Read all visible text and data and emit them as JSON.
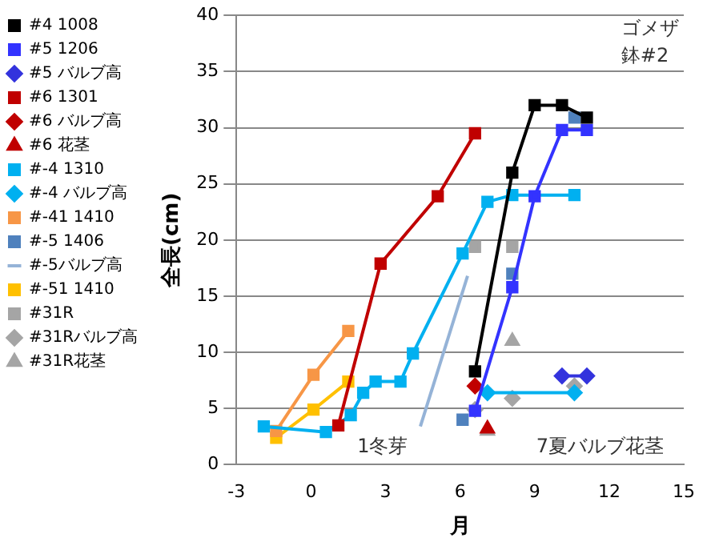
{
  "chart_data": {
    "type": "line",
    "xlabel": "月",
    "ylabel": "全長(cm)",
    "xlim": [
      -3,
      15
    ],
    "xticks": [
      -3,
      0,
      3,
      6,
      9,
      12,
      15
    ],
    "ylim": [
      0,
      40
    ],
    "yticks": [
      0,
      5,
      10,
      15,
      20,
      25,
      30,
      35,
      40
    ],
    "grid": "y",
    "legend": "left",
    "annotations": [
      "ゴメザ",
      "鉢#2",
      "1冬芽",
      "7夏バルブ花茎"
    ],
    "series": [
      {
        "name": "#4 1008",
        "marker": "square",
        "color": "#000000",
        "x": [
          6.6,
          8.1,
          9.0,
          10.1,
          11.1
        ],
        "values": [
          8.3,
          26.0,
          32.0,
          32.0,
          30.9
        ]
      },
      {
        "name": "#5 1206",
        "marker": "square",
        "color": "#3333ff",
        "x": [
          6.6,
          8.1,
          9.0,
          10.1,
          11.1
        ],
        "values": [
          4.8,
          15.8,
          23.9,
          29.8,
          29.8
        ]
      },
      {
        "name": "#5 バルブ高",
        "marker": "diamond",
        "color": "#3333dd",
        "x": [
          10.1,
          11.1
        ],
        "values": [
          7.9,
          7.9
        ]
      },
      {
        "name": "#6 1301",
        "marker": "square",
        "color": "#c00000",
        "x": [
          1.1,
          2.8,
          5.1,
          6.6
        ],
        "values": [
          3.5,
          17.9,
          23.9,
          29.5
        ]
      },
      {
        "name": "#6 バルブ高",
        "type": "scatter",
        "marker": "diamond",
        "color": "#c00000",
        "x": [
          6.6
        ],
        "values": [
          7.0
        ]
      },
      {
        "name": "#6 花茎",
        "type": "scatter",
        "marker": "triangle",
        "color": "#c00000",
        "x": [
          7.1
        ],
        "values": [
          3.2
        ]
      },
      {
        "name": "#-4 1310",
        "marker": "square",
        "color": "#00b0f0",
        "x": [
          -1.9,
          0.6,
          1.6,
          2.1,
          2.6,
          3.6,
          4.1,
          6.1,
          7.1,
          8.1,
          10.6
        ],
        "values": [
          3.4,
          2.9,
          4.4,
          6.4,
          7.4,
          7.4,
          9.9,
          18.8,
          23.4,
          24.0,
          24.0
        ]
      },
      {
        "name": "#-4 バルブ高",
        "marker": "diamond",
        "color": "#00b0f0",
        "x": [
          7.1,
          10.6
        ],
        "values": [
          6.4,
          6.4
        ]
      },
      {
        "name": "#-41 1410",
        "marker": "square",
        "color": "#f79646",
        "x": [
          -1.4,
          0.1,
          1.5
        ],
        "values": [
          3.0,
          8.0,
          11.9
        ]
      },
      {
        "name": "#-5 1406",
        "type": "scatter",
        "marker": "square",
        "color": "#4f81bd",
        "x": [
          6.1,
          8.1,
          10.6
        ],
        "values": [
          4.0,
          17.0,
          30.9
        ]
      },
      {
        "name": "#-5バルブ高",
        "marker": "none",
        "color": "#95b3d7",
        "x": [
          4.4,
          6.3
        ],
        "values": [
          3.4,
          16.8
        ]
      },
      {
        "name": "#-51 1410",
        "marker": "square",
        "color": "#ffc000",
        "x": [
          -1.4,
          0.1,
          1.5
        ],
        "values": [
          2.4,
          4.9,
          7.4
        ]
      },
      {
        "name": "#31R",
        "type": "scatter",
        "marker": "square",
        "color": "#a5a5a5",
        "x": [
          6.6,
          8.1
        ],
        "values": [
          19.4,
          19.4
        ]
      },
      {
        "name": "#31Rバルブ高",
        "type": "scatter",
        "marker": "diamond",
        "color": "#a5a5a5",
        "x": [
          6.6,
          8.1,
          10.6
        ],
        "values": [
          4.9,
          5.9,
          7.0
        ]
      },
      {
        "name": "#31R花茎",
        "type": "scatter",
        "marker": "triangle",
        "color": "#a5a5a5",
        "x": [
          7.1,
          8.1
        ],
        "values": [
          3.0,
          11.0
        ]
      }
    ]
  }
}
